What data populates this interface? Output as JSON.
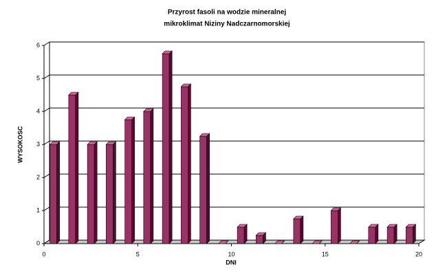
{
  "chart_data": {
    "type": "bar3d",
    "title": "Przyrost fasoli na wodzie mineralnej",
    "subtitle": "mikroklimat Niziny Nadczarnomorskiej",
    "x_label": "DNI",
    "y_label": "WYSOKOSC",
    "x": [
      1,
      2,
      3,
      4,
      5,
      6,
      7,
      8,
      9,
      10,
      11,
      12,
      13,
      14,
      15,
      16,
      17,
      18,
      19,
      20
    ],
    "values": [
      3,
      4.5,
      3,
      3,
      3.75,
      4,
      5.75,
      4.75,
      3.25,
      0,
      0.5,
      0.25,
      0,
      0.75,
      0,
      1,
      0,
      0.5,
      0.5,
      0.5
    ],
    "color": "#993366",
    "xlim": [
      0,
      20
    ],
    "xticks": [
      0,
      5,
      10,
      15,
      20
    ],
    "ylim": [
      0,
      6
    ],
    "yticks": [
      0,
      1,
      2,
      3,
      4,
      5,
      6
    ],
    "grid": true
  }
}
